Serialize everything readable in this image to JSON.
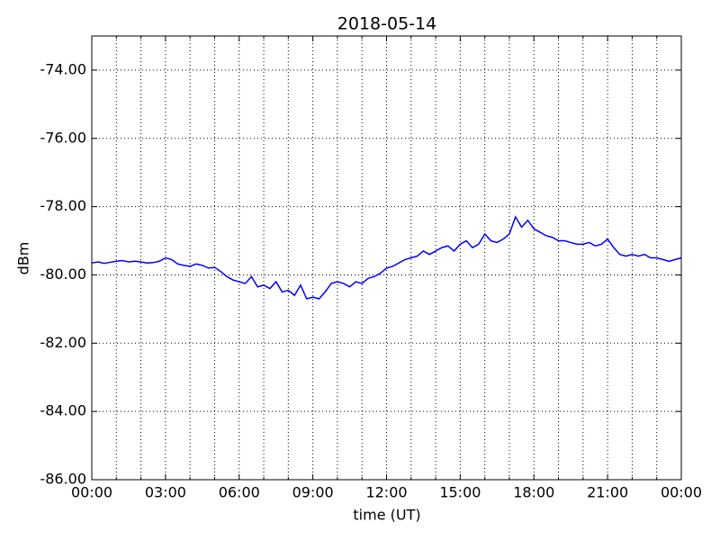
{
  "chart_data": {
    "type": "line",
    "title": "2018-05-14",
    "xlabel": "time (UT)",
    "ylabel": "dBm",
    "x": [
      0,
      0.25,
      0.5,
      0.75,
      1,
      1.25,
      1.5,
      1.75,
      2,
      2.25,
      2.5,
      2.75,
      3,
      3.25,
      3.5,
      3.75,
      4,
      4.25,
      4.5,
      4.75,
      5,
      5.25,
      5.5,
      5.75,
      6,
      6.25,
      6.5,
      6.75,
      7,
      7.25,
      7.5,
      7.75,
      8,
      8.25,
      8.5,
      8.75,
      9,
      9.25,
      9.5,
      9.75,
      10,
      10.25,
      10.5,
      10.75,
      11,
      11.25,
      11.5,
      11.75,
      12,
      12.25,
      12.5,
      12.75,
      13,
      13.25,
      13.5,
      13.75,
      14,
      14.25,
      14.5,
      14.75,
      15,
      15.25,
      15.5,
      15.75,
      16,
      16.25,
      16.5,
      16.75,
      17,
      17.25,
      17.5,
      17.75,
      18,
      18.25,
      18.5,
      18.75,
      19,
      19.25,
      19.5,
      19.75,
      20,
      20.25,
      20.5,
      20.75,
      21,
      21.25,
      21.5,
      21.75,
      22,
      22.25,
      22.5,
      22.75,
      23,
      23.25,
      23.5,
      23.75,
      24
    ],
    "series": [
      {
        "color": "#0000ff",
        "values": [
          -79.65,
          -79.62,
          -79.66,
          -79.63,
          -79.6,
          -79.58,
          -79.62,
          -79.6,
          -79.62,
          -79.65,
          -79.64,
          -79.6,
          -79.5,
          -79.55,
          -79.68,
          -79.72,
          -79.75,
          -79.68,
          -79.72,
          -79.8,
          -79.78,
          -79.9,
          -80.05,
          -80.15,
          -80.2,
          -80.25,
          -80.05,
          -80.35,
          -80.3,
          -80.4,
          -80.2,
          -80.5,
          -80.45,
          -80.6,
          -80.3,
          -80.7,
          -80.65,
          -80.7,
          -80.5,
          -80.25,
          -80.2,
          -80.25,
          -80.35,
          -80.2,
          -80.25,
          -80.1,
          -80.05,
          -79.95,
          -79.8,
          -79.75,
          -79.65,
          -79.55,
          -79.5,
          -79.45,
          -79.3,
          -79.4,
          -79.3,
          -79.2,
          -79.15,
          -79.3,
          -79.1,
          -79.0,
          -79.2,
          -79.1,
          -78.8,
          -79.0,
          -79.05,
          -78.95,
          -78.8,
          -78.3,
          -78.6,
          -78.4,
          -78.65,
          -78.75,
          -78.85,
          -78.9,
          -79.0,
          -79.0,
          -79.05,
          -79.1,
          -79.1,
          -79.05,
          -79.15,
          -79.1,
          -78.95,
          -79.2,
          -79.4,
          -79.45,
          -79.4,
          -79.45,
          -79.4,
          -79.5,
          -79.5,
          -79.55,
          -79.6,
          -79.55,
          -79.5
        ]
      }
    ],
    "xlim": [
      0,
      24
    ],
    "xticks": [
      {
        "value": 0,
        "label": "00:00"
      },
      {
        "value": 3,
        "label": "03:00"
      },
      {
        "value": 6,
        "label": "06:00"
      },
      {
        "value": 9,
        "label": "09:00"
      },
      {
        "value": 12,
        "label": "12:00"
      },
      {
        "value": 15,
        "label": "15:00"
      },
      {
        "value": 18,
        "label": "18:00"
      },
      {
        "value": 21,
        "label": "21:00"
      },
      {
        "value": 24,
        "label": "00:00"
      }
    ],
    "xminorticks": [
      1,
      2,
      4,
      5,
      7,
      8,
      10,
      11,
      13,
      14,
      16,
      17,
      19,
      20,
      22,
      23
    ],
    "ylim": [
      -86,
      -73
    ],
    "yticks": [
      {
        "value": -86,
        "label": "-86.00"
      },
      {
        "value": -84,
        "label": "-84.00"
      },
      {
        "value": -82,
        "label": "-82.00"
      },
      {
        "value": -80,
        "label": "-80.00"
      },
      {
        "value": -78,
        "label": "-78.00"
      },
      {
        "value": -76,
        "label": "-76.00"
      },
      {
        "value": -74,
        "label": "-74.00"
      }
    ],
    "grid": true
  }
}
